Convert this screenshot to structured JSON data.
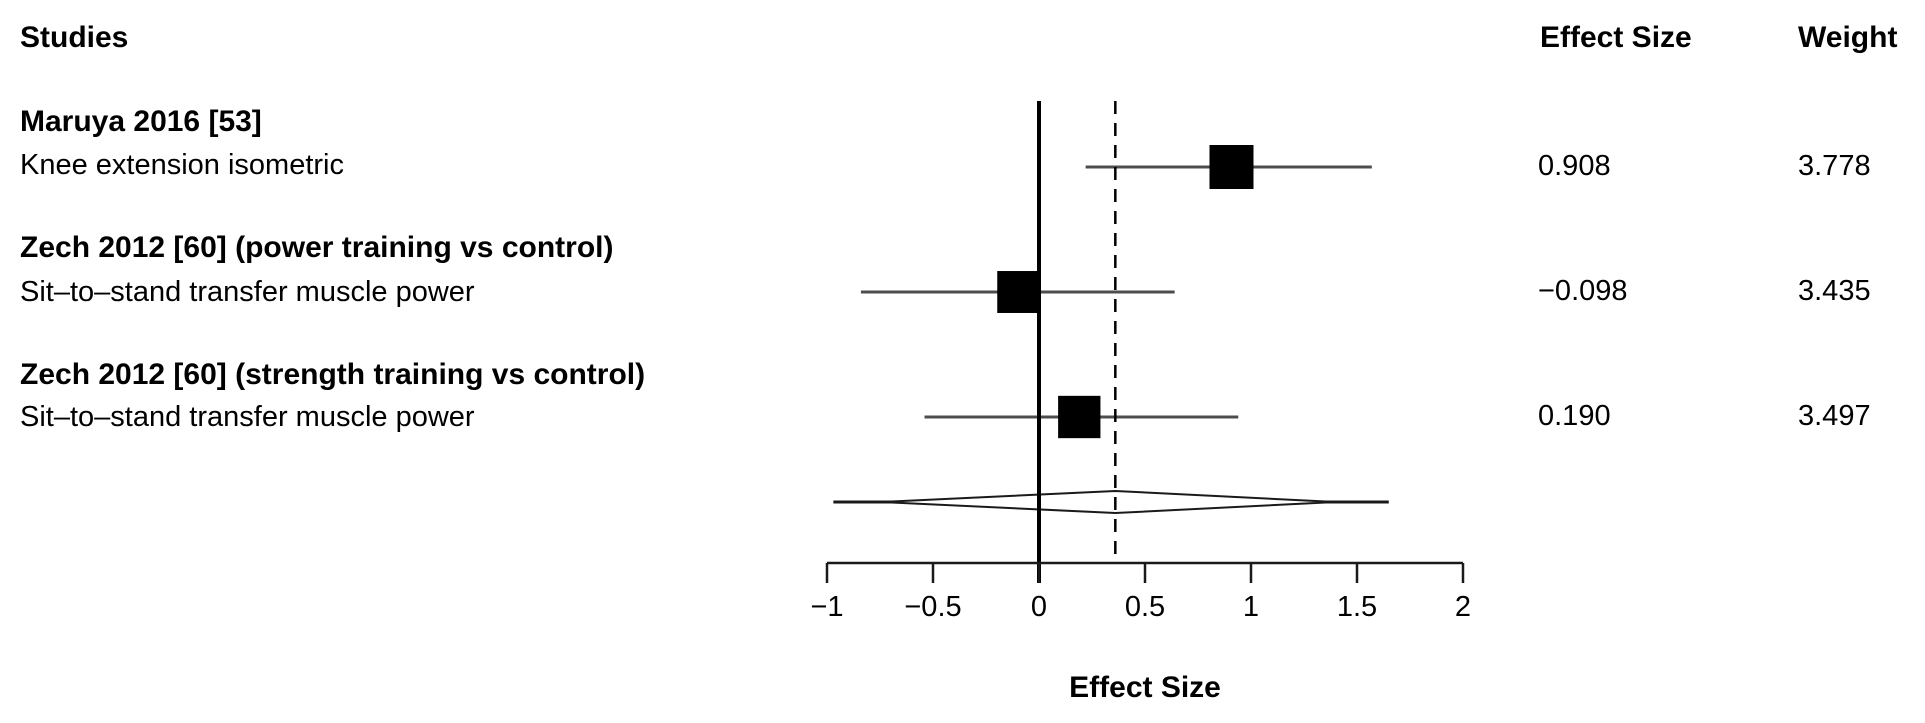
{
  "columns": {
    "studies": "Studies",
    "effect_size": "Effect Size",
    "weight": "Weight"
  },
  "chart_data": {
    "type": "forest",
    "xlabel": "Effect Size",
    "xlim": [
      -1,
      2
    ],
    "x_ticks": [
      -1,
      -0.5,
      0,
      0.5,
      1,
      1.5,
      2
    ],
    "x_tick_labels": [
      "−1",
      "−0.5",
      "0",
      "0.5",
      "1",
      "1.5",
      "2"
    ],
    "grid": false,
    "reference_line": 0,
    "dashed_line": 0.36,
    "studies": [
      {
        "label": "Maruya 2016 [53]",
        "outcome": "Knee extension isometric",
        "effect": 0.908,
        "effect_display": "0.908",
        "ci": [
          0.22,
          1.57
        ],
        "weight": 3.778,
        "weight_display": "3.778"
      },
      {
        "label": "Zech 2012 [60] (power training vs control)",
        "outcome": "Sit–to–stand transfer muscle power",
        "effect": -0.098,
        "effect_display": "−0.098",
        "ci": [
          -0.84,
          0.64
        ],
        "weight": 3.435,
        "weight_display": "3.435"
      },
      {
        "label": "Zech 2012 [60] (strength training vs control)",
        "outcome": "Sit–to–stand transfer muscle power",
        "effect": 0.19,
        "effect_display": "0.190",
        "ci": [
          -0.54,
          0.94
        ],
        "weight": 3.497,
        "weight_display": "3.497"
      }
    ],
    "summary": {
      "center": 0.36,
      "diamond_ci": [
        -0.74,
        1.4
      ],
      "line_ci": [
        -0.97,
        1.65
      ]
    },
    "colors": {
      "marker": "#000000",
      "ci_line": "#4d4d4d",
      "axis": "#1a1a1a",
      "reference": "#000000",
      "background": "#ffffff"
    }
  }
}
